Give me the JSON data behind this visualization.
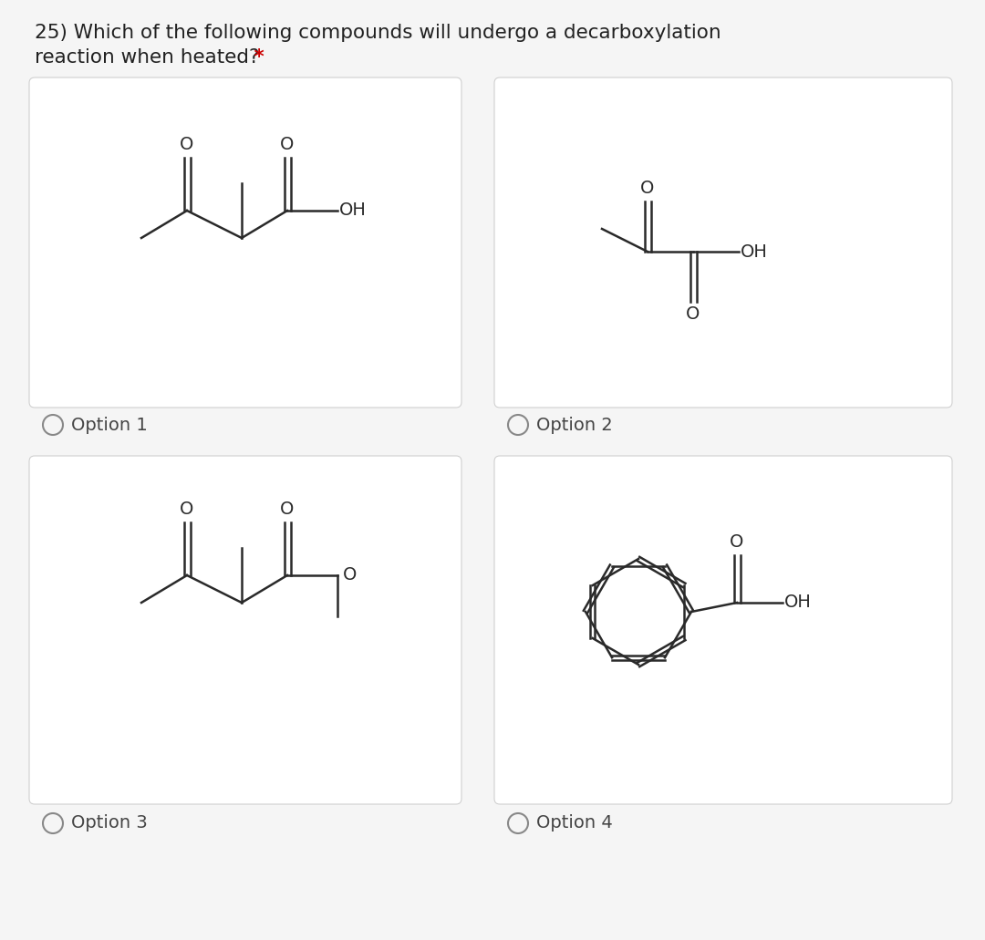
{
  "title_line1": "25) Which of the following compounds will undergo a decarboxylation",
  "title_line2": "reaction when heated?",
  "asterisk": " *",
  "asterisk_color": "#cc0000",
  "title_color": "#212121",
  "title_fontsize": 15.5,
  "background_color": "#f5f5f5",
  "panel_bg": "#ffffff",
  "panel_border": "#d0d0d0",
  "option_labels": [
    "Option 1",
    "Option 2",
    "Option 3",
    "Option 4"
  ],
  "text_color": "#444444",
  "line_color": "#2a2a2a",
  "label_fontsize": 14,
  "mol_fontsize": 14
}
